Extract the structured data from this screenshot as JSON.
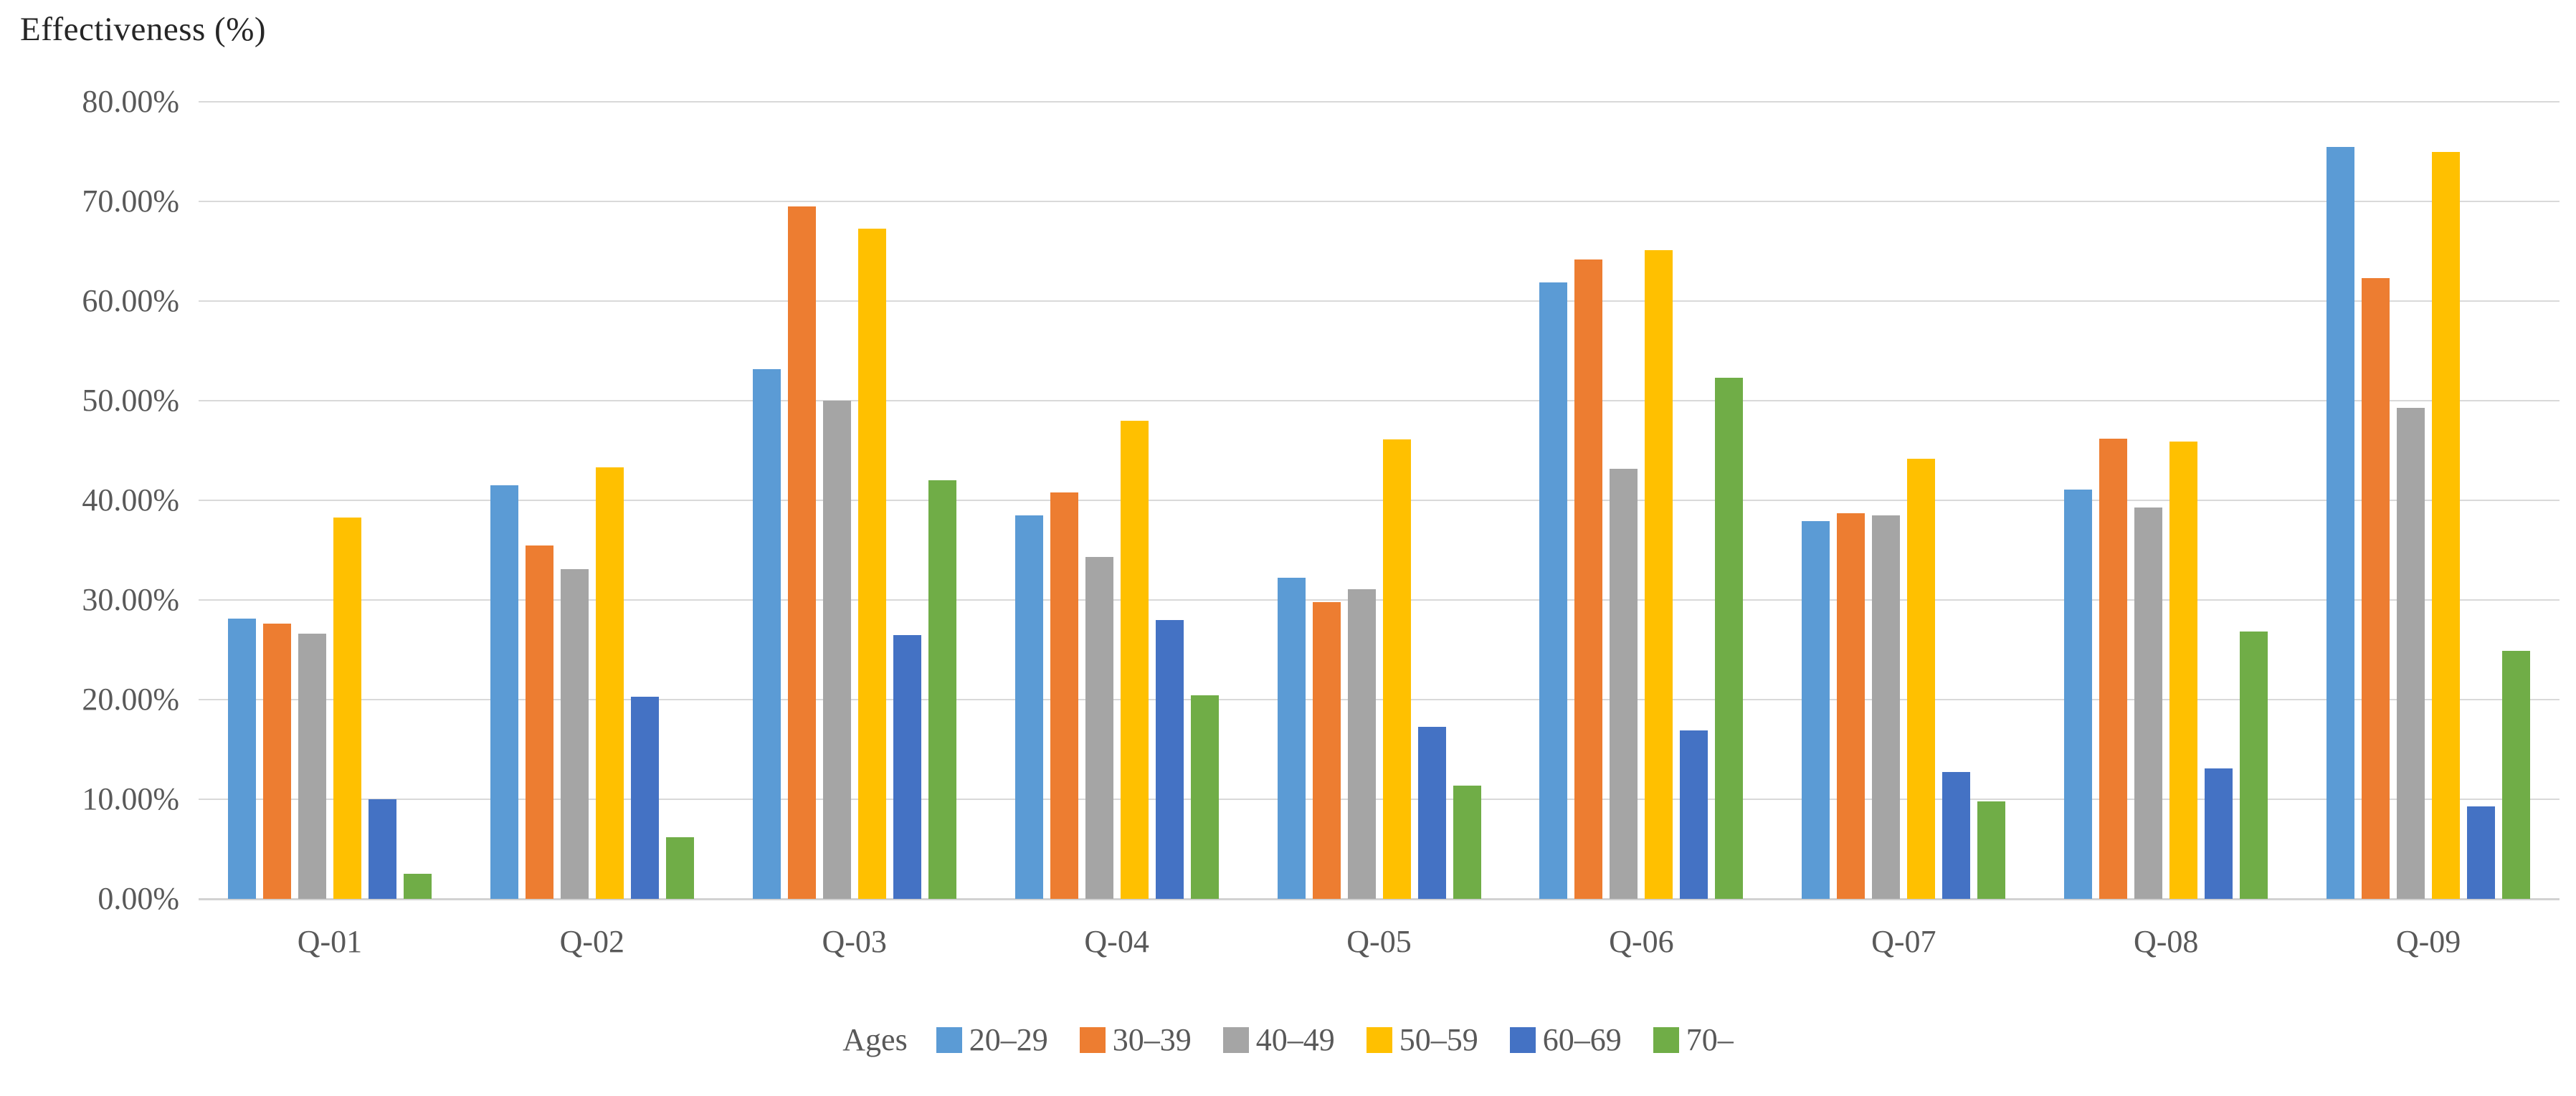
{
  "title": "Effectiveness (%)",
  "chart_data": {
    "type": "bar",
    "title": "Effectiveness (%)",
    "ylabel": "Effectiveness (%)",
    "xlabel": "",
    "ylim": [
      0,
      80
    ],
    "ytick_step": 10,
    "grid": "horizontal",
    "legend_position": "bottom",
    "legend_title": "Ages",
    "categories": [
      "Q-01",
      "Q-02",
      "Q-03",
      "Q-04",
      "Q-05",
      "Q-06",
      "Q-07",
      "Q-08",
      "Q-09"
    ],
    "series": [
      {
        "name": "20–29",
        "color": "#5B9BD5",
        "values": [
          28.1,
          41.5,
          53.2,
          38.5,
          32.2,
          61.9,
          37.9,
          41.1,
          75.5
        ]
      },
      {
        "name": "30–39",
        "color": "#ED7D31",
        "values": [
          27.6,
          35.5,
          69.5,
          40.8,
          29.8,
          64.2,
          38.7,
          46.2,
          62.3
        ]
      },
      {
        "name": "40–49",
        "color": "#A5A5A5",
        "values": [
          26.6,
          33.1,
          50.0,
          34.3,
          31.1,
          43.2,
          38.5,
          39.3,
          49.3
        ]
      },
      {
        "name": "50–59",
        "color": "#FFC000",
        "values": [
          38.3,
          43.3,
          67.3,
          48.0,
          46.1,
          65.1,
          44.2,
          45.9,
          75.0
        ]
      },
      {
        "name": "60–69",
        "color": "#4472C4",
        "values": [
          10.0,
          20.3,
          26.5,
          28.0,
          17.3,
          16.9,
          12.7,
          13.1,
          9.3
        ]
      },
      {
        "name": "70–",
        "color": "#70AD47",
        "values": [
          2.5,
          6.2,
          42.0,
          20.4,
          11.4,
          52.3,
          9.8,
          26.8,
          24.9
        ]
      }
    ]
  },
  "axes": {
    "y_ticks": [
      "80.00%",
      "70.00%",
      "60.00%",
      "50.00%",
      "40.00%",
      "30.00%",
      "20.00%",
      "10.00%",
      "0.00%"
    ],
    "x_ticks": [
      "Q-01",
      "Q-02",
      "Q-03",
      "Q-04",
      "Q-05",
      "Q-06",
      "Q-07",
      "Q-08",
      "Q-09"
    ]
  },
  "legend": {
    "title": "Ages",
    "entries": [
      {
        "label": "20–29",
        "color": "#5B9BD5"
      },
      {
        "label": "30–39",
        "color": "#ED7D31"
      },
      {
        "label": "40–49",
        "color": "#A5A5A5"
      },
      {
        "label": "50–59",
        "color": "#FFC000"
      },
      {
        "label": "60–69",
        "color": "#4472C4"
      },
      {
        "label": "70–",
        "color": "#70AD47"
      }
    ]
  },
  "colors": {
    "gridline": "#D9D9D9",
    "axis_line": "#D2D2D2",
    "tick_text": "#595959",
    "title_text": "#262626",
    "background": "#FFFFFF"
  }
}
